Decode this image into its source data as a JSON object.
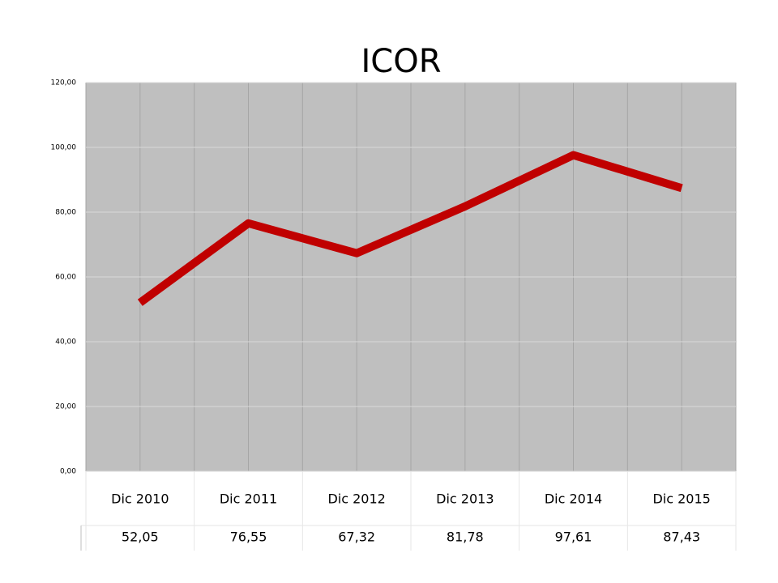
{
  "chart_data": {
    "type": "line",
    "title": "ICOR",
    "categories": [
      "Dic 2010",
      "Dic 2011",
      "Dic 2012",
      "Dic 2013",
      "Dic 2014",
      "Dic 2015"
    ],
    "values": [
      52.05,
      76.55,
      67.32,
      81.78,
      97.61,
      87.43
    ],
    "value_labels": [
      "52,05",
      "76,55",
      "67,32",
      "81,78",
      "97,61",
      "87,43"
    ],
    "color": "#c00000",
    "ylim": [
      0,
      120
    ],
    "yticks": [
      {
        "value": 0,
        "label": "0,00"
      },
      {
        "value": 20,
        "label": "20,00"
      },
      {
        "value": 40,
        "label": "40,00"
      },
      {
        "value": 60,
        "label": "60,00"
      },
      {
        "value": 80,
        "label": "80,00"
      },
      {
        "value": 100,
        "label": "100,00"
      },
      {
        "value": 120,
        "label": "120,00"
      }
    ],
    "grid": true
  }
}
